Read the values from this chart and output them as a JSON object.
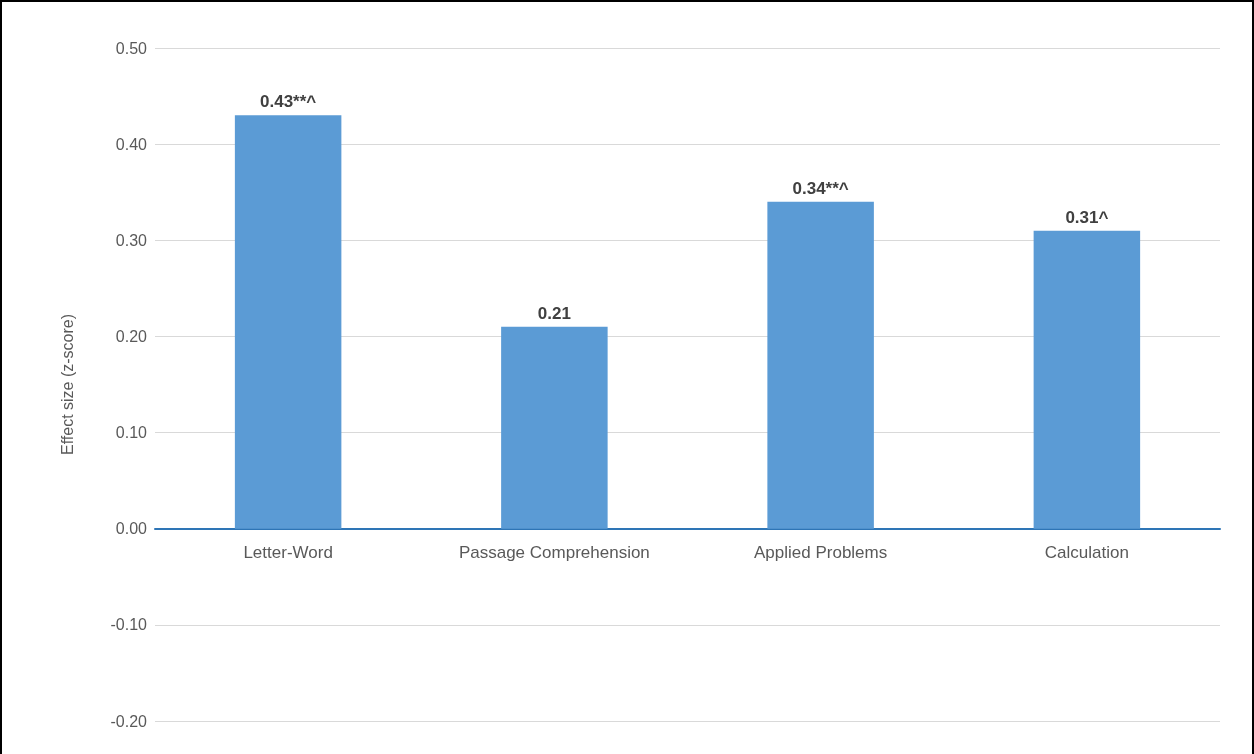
{
  "chart_data": {
    "type": "bar",
    "ylabel": "Effect size (z-score)",
    "categories": [
      "Letter-Word",
      "Passage Comprehension",
      "Applied Problems",
      "Calculation"
    ],
    "values": [
      0.43,
      0.21,
      0.34,
      0.31
    ],
    "value_labels": [
      "0.43**^",
      "0.21",
      "0.34**^",
      "0.31^"
    ],
    "color": "#5b9bd5",
    "ylim": [
      -0.2,
      0.5
    ],
    "yticks": [
      {
        "value": -0.2,
        "label": "-0.20"
      },
      {
        "value": -0.1,
        "label": "-0.10"
      },
      {
        "value": 0,
        "label": "0.00"
      },
      {
        "value": 0.1,
        "label": "0.10"
      },
      {
        "value": 0.2,
        "label": "0.20"
      },
      {
        "value": 0.3,
        "label": "0.30"
      },
      {
        "value": 0.4,
        "label": "0.40"
      },
      {
        "value": 0.5,
        "label": "0.50"
      }
    ],
    "grid": "y"
  }
}
